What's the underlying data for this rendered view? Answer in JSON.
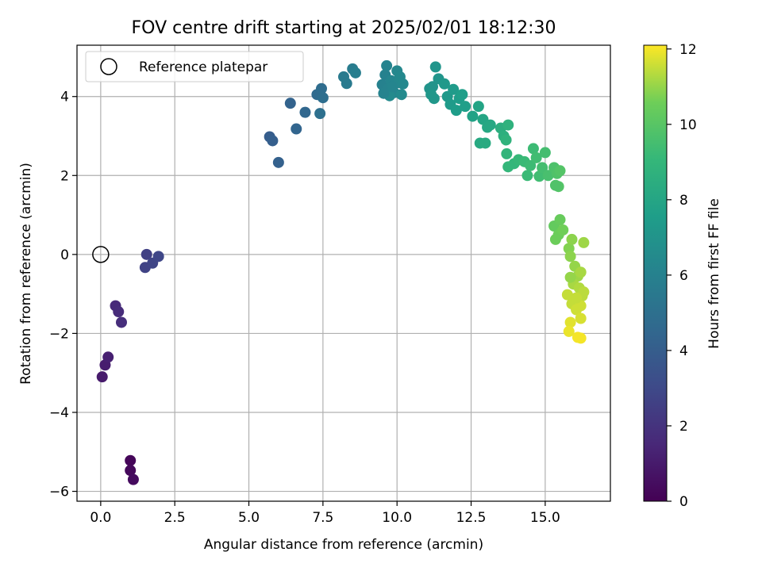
{
  "chart_data": {
    "type": "scatter",
    "title": "FOV centre drift starting at 2025/02/01 18:12:30",
    "xlabel": "Angular distance from reference (arcmin)",
    "ylabel": "Rotation from reference (arcmin)",
    "xlim": [
      -0.8,
      17.2
    ],
    "ylim": [
      -6.25,
      5.3
    ],
    "xticks": [
      0.0,
      2.5,
      5.0,
      7.5,
      10.0,
      12.5,
      15.0
    ],
    "xtick_labels": [
      "0.0",
      "2.5",
      "5.0",
      "7.5",
      "10.0",
      "12.5",
      "15.0"
    ],
    "yticks": [
      -6,
      -4,
      -2,
      0,
      2,
      4
    ],
    "ytick_labels": [
      "−6",
      "−4",
      "−2",
      "0",
      "2",
      "4"
    ],
    "grid": true,
    "legend": {
      "position": "top-left",
      "entries": [
        "Reference platepar"
      ]
    },
    "reference_point": {
      "x": 0.0,
      "y": 0.0
    },
    "colorbar": {
      "label": "Hours from first FF file",
      "colormap": "viridis",
      "range": [
        0,
        12.1
      ],
      "ticks": [
        0,
        2,
        4,
        6,
        8,
        10,
        12
      ],
      "tick_labels": [
        "0",
        "2",
        "4",
        "6",
        "8",
        "10",
        "12"
      ]
    },
    "points": [
      {
        "x": 1.0,
        "y": -5.22,
        "c": 0.2
      },
      {
        "x": 1.0,
        "y": -5.47,
        "c": 0.3
      },
      {
        "x": 1.1,
        "y": -5.7,
        "c": 0.4
      },
      {
        "x": 0.05,
        "y": -3.1,
        "c": 1.0
      },
      {
        "x": 0.15,
        "y": -2.8,
        "c": 1.1
      },
      {
        "x": 0.25,
        "y": -2.6,
        "c": 1.2
      },
      {
        "x": 0.5,
        "y": -1.3,
        "c": 1.6
      },
      {
        "x": 0.6,
        "y": -1.45,
        "c": 1.7
      },
      {
        "x": 0.7,
        "y": -1.72,
        "c": 1.8
      },
      {
        "x": 1.55,
        "y": 0.0,
        "c": 2.6
      },
      {
        "x": 1.5,
        "y": -0.33,
        "c": 2.7
      },
      {
        "x": 1.75,
        "y": -0.22,
        "c": 2.8
      },
      {
        "x": 1.95,
        "y": -0.05,
        "c": 2.9
      },
      {
        "x": 5.7,
        "y": 2.98,
        "c": 4.0
      },
      {
        "x": 5.8,
        "y": 2.88,
        "c": 4.1
      },
      {
        "x": 6.0,
        "y": 2.33,
        "c": 4.2
      },
      {
        "x": 6.4,
        "y": 3.83,
        "c": 4.3
      },
      {
        "x": 6.6,
        "y": 3.18,
        "c": 4.4
      },
      {
        "x": 6.9,
        "y": 3.6,
        "c": 4.5
      },
      {
        "x": 7.3,
        "y": 4.05,
        "c": 4.7
      },
      {
        "x": 7.45,
        "y": 4.2,
        "c": 4.8
      },
      {
        "x": 7.5,
        "y": 3.97,
        "c": 4.9
      },
      {
        "x": 7.4,
        "y": 3.57,
        "c": 5.0
      },
      {
        "x": 8.2,
        "y": 4.5,
        "c": 5.6
      },
      {
        "x": 8.3,
        "y": 4.33,
        "c": 5.6
      },
      {
        "x": 8.5,
        "y": 4.7,
        "c": 5.7
      },
      {
        "x": 8.6,
        "y": 4.6,
        "c": 5.8
      },
      {
        "x": 9.5,
        "y": 4.3,
        "c": 6.0
      },
      {
        "x": 9.6,
        "y": 4.55,
        "c": 6.0
      },
      {
        "x": 9.65,
        "y": 4.78,
        "c": 6.1
      },
      {
        "x": 9.7,
        "y": 4.2,
        "c": 6.1
      },
      {
        "x": 9.8,
        "y": 4.4,
        "c": 6.2
      },
      {
        "x": 9.9,
        "y": 4.1,
        "c": 6.2
      },
      {
        "x": 10.0,
        "y": 4.65,
        "c": 6.3
      },
      {
        "x": 10.05,
        "y": 4.35,
        "c": 6.3
      },
      {
        "x": 10.1,
        "y": 4.5,
        "c": 6.4
      },
      {
        "x": 10.2,
        "y": 4.32,
        "c": 6.4
      },
      {
        "x": 10.15,
        "y": 4.05,
        "c": 6.5
      },
      {
        "x": 9.75,
        "y": 4.02,
        "c": 6.5
      },
      {
        "x": 9.55,
        "y": 4.08,
        "c": 6.1
      },
      {
        "x": 9.85,
        "y": 4.25,
        "c": 6.2
      },
      {
        "x": 11.1,
        "y": 4.2,
        "c": 7.0
      },
      {
        "x": 11.2,
        "y": 4.25,
        "c": 7.0
      },
      {
        "x": 11.3,
        "y": 4.75,
        "c": 7.1
      },
      {
        "x": 11.4,
        "y": 4.45,
        "c": 7.1
      },
      {
        "x": 11.25,
        "y": 3.95,
        "c": 7.2
      },
      {
        "x": 11.15,
        "y": 4.05,
        "c": 7.2
      },
      {
        "x": 11.6,
        "y": 4.32,
        "c": 7.3
      },
      {
        "x": 11.7,
        "y": 4.0,
        "c": 7.3
      },
      {
        "x": 11.8,
        "y": 3.8,
        "c": 7.4
      },
      {
        "x": 11.9,
        "y": 4.18,
        "c": 7.4
      },
      {
        "x": 12.0,
        "y": 3.65,
        "c": 7.5
      },
      {
        "x": 12.1,
        "y": 3.95,
        "c": 7.5
      },
      {
        "x": 12.2,
        "y": 4.05,
        "c": 7.6
      },
      {
        "x": 12.3,
        "y": 3.75,
        "c": 7.6
      },
      {
        "x": 12.55,
        "y": 3.5,
        "c": 7.8
      },
      {
        "x": 12.75,
        "y": 3.75,
        "c": 7.9
      },
      {
        "x": 12.9,
        "y": 3.42,
        "c": 8.0
      },
      {
        "x": 13.05,
        "y": 3.22,
        "c": 8.1
      },
      {
        "x": 13.15,
        "y": 3.28,
        "c": 8.1
      },
      {
        "x": 12.8,
        "y": 2.82,
        "c": 8.2
      },
      {
        "x": 12.98,
        "y": 2.82,
        "c": 8.3
      },
      {
        "x": 13.5,
        "y": 3.2,
        "c": 8.5
      },
      {
        "x": 13.6,
        "y": 3.0,
        "c": 8.6
      },
      {
        "x": 13.75,
        "y": 3.28,
        "c": 8.7
      },
      {
        "x": 13.68,
        "y": 2.9,
        "c": 8.8
      },
      {
        "x": 13.7,
        "y": 2.55,
        "c": 8.9
      },
      {
        "x": 13.75,
        "y": 2.22,
        "c": 9.0
      },
      {
        "x": 13.95,
        "y": 2.3,
        "c": 9.0
      },
      {
        "x": 14.1,
        "y": 2.4,
        "c": 9.1
      },
      {
        "x": 14.3,
        "y": 2.35,
        "c": 9.2
      },
      {
        "x": 14.4,
        "y": 2.0,
        "c": 9.2
      },
      {
        "x": 14.5,
        "y": 2.25,
        "c": 9.3
      },
      {
        "x": 14.6,
        "y": 2.68,
        "c": 9.3
      },
      {
        "x": 14.7,
        "y": 2.45,
        "c": 9.4
      },
      {
        "x": 14.8,
        "y": 1.98,
        "c": 9.4
      },
      {
        "x": 14.9,
        "y": 2.2,
        "c": 9.5
      },
      {
        "x": 15.0,
        "y": 2.58,
        "c": 9.5
      },
      {
        "x": 15.1,
        "y": 2.0,
        "c": 9.6
      },
      {
        "x": 15.3,
        "y": 2.2,
        "c": 9.7
      },
      {
        "x": 15.4,
        "y": 2.05,
        "c": 9.8
      },
      {
        "x": 15.45,
        "y": 1.72,
        "c": 9.9
      },
      {
        "x": 15.5,
        "y": 2.12,
        "c": 9.9
      },
      {
        "x": 15.35,
        "y": 1.75,
        "c": 9.8
      },
      {
        "x": 15.3,
        "y": 0.72,
        "c": 10.3
      },
      {
        "x": 15.5,
        "y": 0.88,
        "c": 10.4
      },
      {
        "x": 15.45,
        "y": 0.5,
        "c": 10.5
      },
      {
        "x": 15.6,
        "y": 0.62,
        "c": 10.6
      },
      {
        "x": 15.35,
        "y": 0.38,
        "c": 10.5
      },
      {
        "x": 15.8,
        "y": 0.15,
        "c": 10.8
      },
      {
        "x": 15.85,
        "y": -0.05,
        "c": 10.9
      },
      {
        "x": 15.9,
        "y": 0.38,
        "c": 10.9
      },
      {
        "x": 16.0,
        "y": -0.3,
        "c": 11.0
      },
      {
        "x": 16.1,
        "y": -0.55,
        "c": 11.1
      },
      {
        "x": 16.2,
        "y": -0.45,
        "c": 11.2
      },
      {
        "x": 16.3,
        "y": 0.3,
        "c": 11.1
      },
      {
        "x": 15.95,
        "y": -0.75,
        "c": 11.2
      },
      {
        "x": 16.15,
        "y": -0.85,
        "c": 11.3
      },
      {
        "x": 16.25,
        "y": -1.05,
        "c": 11.4
      },
      {
        "x": 16.3,
        "y": -0.95,
        "c": 11.4
      },
      {
        "x": 15.75,
        "y": -1.02,
        "c": 11.5
      },
      {
        "x": 15.9,
        "y": -1.25,
        "c": 11.5
      },
      {
        "x": 16.05,
        "y": -1.4,
        "c": 11.6
      },
      {
        "x": 16.2,
        "y": -1.3,
        "c": 11.6
      },
      {
        "x": 16.2,
        "y": -1.62,
        "c": 11.7
      },
      {
        "x": 15.85,
        "y": -1.72,
        "c": 11.8
      },
      {
        "x": 15.8,
        "y": -1.95,
        "c": 11.9
      },
      {
        "x": 16.1,
        "y": -2.1,
        "c": 12.0
      },
      {
        "x": 16.2,
        "y": -2.12,
        "c": 12.0
      },
      {
        "x": 15.85,
        "y": -0.58,
        "c": 11.0
      },
      {
        "x": 16.05,
        "y": -1.1,
        "c": 11.5
      }
    ]
  }
}
